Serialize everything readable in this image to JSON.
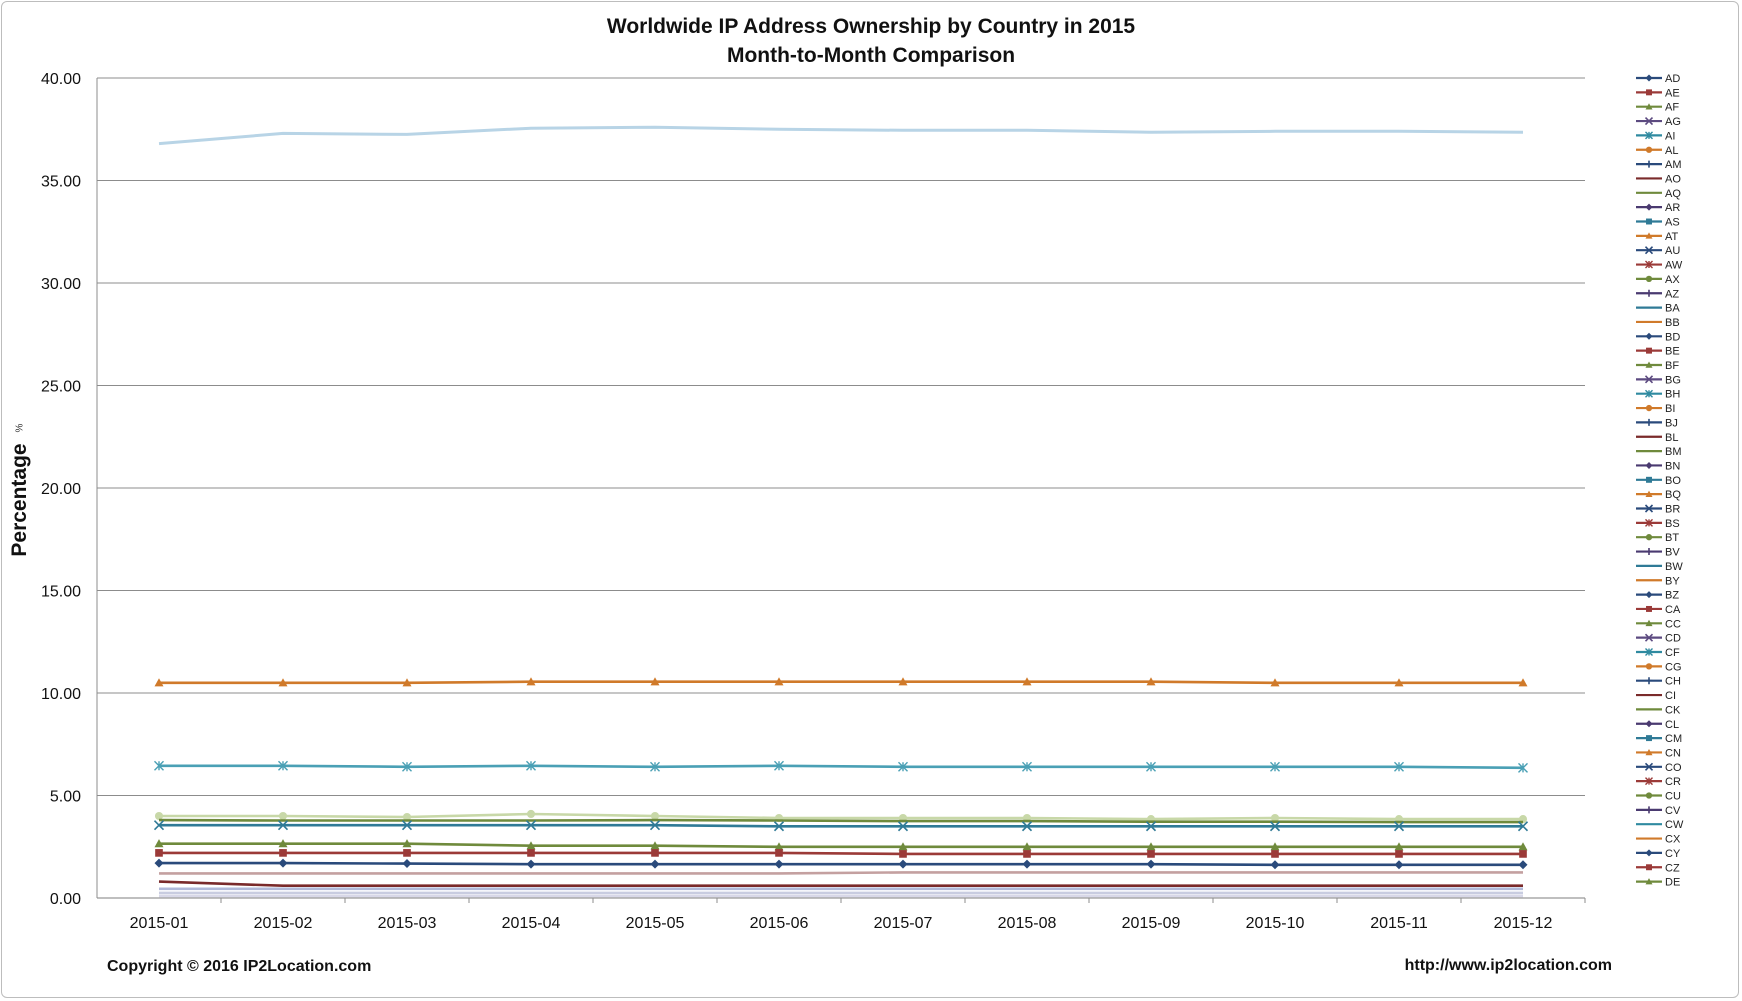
{
  "chart_data": {
    "type": "line",
    "title": "Worldwide IP Address Ownership by Country in 2015",
    "subtitle": "Month-to-Month Comparison",
    "ylabel": "Percentage",
    "ylabel_unit": "%",
    "xlabel": "",
    "ylim": [
      0,
      40
    ],
    "yticks": [
      "0.00",
      "5.00",
      "10.00",
      "15.00",
      "20.00",
      "25.00",
      "30.00",
      "35.00",
      "40.00"
    ],
    "grid": true,
    "legend_position": "right",
    "categories": [
      "2015-01",
      "2015-02",
      "2015-03",
      "2015-04",
      "2015-05",
      "2015-06",
      "2015-07",
      "2015-08",
      "2015-09",
      "2015-10",
      "2015-11",
      "2015-12"
    ],
    "legend": [
      {
        "name": "AD",
        "color": "#2a4a7b",
        "marker": "diamond"
      },
      {
        "name": "AE",
        "color": "#9b3a38",
        "marker": "square"
      },
      {
        "name": "AF",
        "color": "#6f8a3c",
        "marker": "triangle"
      },
      {
        "name": "AG",
        "color": "#5c4a80",
        "marker": "x"
      },
      {
        "name": "AI",
        "color": "#2f8aa0",
        "marker": "star"
      },
      {
        "name": "AL",
        "color": "#d07a2a",
        "marker": "circle"
      },
      {
        "name": "AM",
        "color": "#2a4a7b",
        "marker": "plus"
      },
      {
        "name": "AO",
        "color": "#7a2a2a",
        "marker": "none"
      },
      {
        "name": "AQ",
        "color": "#6f8a3c",
        "marker": "none"
      },
      {
        "name": "AR",
        "color": "#4a3a70",
        "marker": "diamond"
      },
      {
        "name": "AS",
        "color": "#2f7a96",
        "marker": "square"
      },
      {
        "name": "AT",
        "color": "#d07a2a",
        "marker": "triangle"
      },
      {
        "name": "AU",
        "color": "#2a4a7b",
        "marker": "x"
      },
      {
        "name": "AW",
        "color": "#9b3a38",
        "marker": "star"
      },
      {
        "name": "AX",
        "color": "#6f8a3c",
        "marker": "circle"
      },
      {
        "name": "AZ",
        "color": "#4a3a70",
        "marker": "plus"
      },
      {
        "name": "BA",
        "color": "#2f7a96",
        "marker": "none"
      },
      {
        "name": "BB",
        "color": "#d07a2a",
        "marker": "none"
      },
      {
        "name": "BD",
        "color": "#2a4a7b",
        "marker": "diamond"
      },
      {
        "name": "BE",
        "color": "#9b3a38",
        "marker": "square"
      },
      {
        "name": "BF",
        "color": "#6f8a3c",
        "marker": "triangle"
      },
      {
        "name": "BG",
        "color": "#5c4a80",
        "marker": "x"
      },
      {
        "name": "BH",
        "color": "#2f8aa0",
        "marker": "star"
      },
      {
        "name": "BI",
        "color": "#d07a2a",
        "marker": "circle"
      },
      {
        "name": "BJ",
        "color": "#2a4a7b",
        "marker": "plus"
      },
      {
        "name": "BL",
        "color": "#7a2a2a",
        "marker": "none"
      },
      {
        "name": "BM",
        "color": "#6f8a3c",
        "marker": "none"
      },
      {
        "name": "BN",
        "color": "#4a3a70",
        "marker": "diamond"
      },
      {
        "name": "BO",
        "color": "#2f7a96",
        "marker": "square"
      },
      {
        "name": "BQ",
        "color": "#d07a2a",
        "marker": "triangle"
      },
      {
        "name": "BR",
        "color": "#2a4a7b",
        "marker": "x"
      },
      {
        "name": "BS",
        "color": "#9b3a38",
        "marker": "star"
      },
      {
        "name": "BT",
        "color": "#6f8a3c",
        "marker": "circle"
      },
      {
        "name": "BV",
        "color": "#4a3a70",
        "marker": "plus"
      },
      {
        "name": "BW",
        "color": "#2f7a96",
        "marker": "none"
      },
      {
        "name": "BY",
        "color": "#d07a2a",
        "marker": "none"
      },
      {
        "name": "BZ",
        "color": "#2a4a7b",
        "marker": "diamond"
      },
      {
        "name": "CA",
        "color": "#9b3a38",
        "marker": "square"
      },
      {
        "name": "CC",
        "color": "#6f8a3c",
        "marker": "triangle"
      },
      {
        "name": "CD",
        "color": "#5c4a80",
        "marker": "x"
      },
      {
        "name": "CF",
        "color": "#2f8aa0",
        "marker": "star"
      },
      {
        "name": "CG",
        "color": "#d07a2a",
        "marker": "circle"
      },
      {
        "name": "CH",
        "color": "#2a4a7b",
        "marker": "plus"
      },
      {
        "name": "CI",
        "color": "#7a2a2a",
        "marker": "none"
      },
      {
        "name": "CK",
        "color": "#6f8a3c",
        "marker": "none"
      },
      {
        "name": "CL",
        "color": "#4a3a70",
        "marker": "diamond"
      },
      {
        "name": "CM",
        "color": "#2f7a96",
        "marker": "square"
      },
      {
        "name": "CN",
        "color": "#d07a2a",
        "marker": "triangle"
      },
      {
        "name": "CO",
        "color": "#2a4a7b",
        "marker": "x"
      },
      {
        "name": "CR",
        "color": "#9b3a38",
        "marker": "star"
      },
      {
        "name": "CU",
        "color": "#6f8a3c",
        "marker": "circle"
      },
      {
        "name": "CV",
        "color": "#4a3a70",
        "marker": "plus"
      },
      {
        "name": "CW",
        "color": "#2f8aa0",
        "marker": "none"
      },
      {
        "name": "CX",
        "color": "#d07a2a",
        "marker": "none"
      },
      {
        "name": "CY",
        "color": "#2a4a7b",
        "marker": "diamond"
      },
      {
        "name": "CZ",
        "color": "#9b3a38",
        "marker": "square"
      },
      {
        "name": "DE",
        "color": "#6f8a3c",
        "marker": "triangle"
      }
    ],
    "series": [
      {
        "color": "#b8d4e6",
        "marker": "none",
        "values": [
          36.8,
          37.3,
          37.25,
          37.55,
          37.6,
          37.5,
          37.45,
          37.45,
          37.35,
          37.4,
          37.4,
          37.35
        ]
      },
      {
        "name": "CN",
        "color": "#d07a2a",
        "marker": "triangle",
        "values": [
          10.5,
          10.5,
          10.5,
          10.55,
          10.55,
          10.55,
          10.55,
          10.55,
          10.55,
          10.5,
          10.5,
          10.5
        ]
      },
      {
        "color": "#4aa0b5",
        "marker": "star",
        "values": [
          6.45,
          6.45,
          6.4,
          6.45,
          6.4,
          6.45,
          6.4,
          6.4,
          6.4,
          6.4,
          6.4,
          6.35
        ]
      },
      {
        "color": "#c8d8a8",
        "marker": "circle",
        "values": [
          4.0,
          4.0,
          3.95,
          4.1,
          4.0,
          3.9,
          3.9,
          3.9,
          3.85,
          3.9,
          3.85,
          3.85
        ]
      },
      {
        "color": "#6f8a3c",
        "marker": "none",
        "values": [
          3.8,
          3.78,
          3.78,
          3.78,
          3.8,
          3.78,
          3.75,
          3.75,
          3.72,
          3.72,
          3.7,
          3.7
        ]
      },
      {
        "color": "#2f7a96",
        "marker": "x",
        "values": [
          3.55,
          3.55,
          3.55,
          3.55,
          3.55,
          3.5,
          3.5,
          3.5,
          3.5,
          3.5,
          3.5,
          3.5
        ]
      },
      {
        "color": "#6f8a3c",
        "marker": "triangle",
        "values": [
          2.65,
          2.65,
          2.65,
          2.55,
          2.55,
          2.5,
          2.5,
          2.5,
          2.5,
          2.5,
          2.5,
          2.5
        ]
      },
      {
        "name": "CA",
        "color": "#9b3a38",
        "marker": "square",
        "values": [
          2.2,
          2.2,
          2.2,
          2.2,
          2.2,
          2.2,
          2.15,
          2.15,
          2.15,
          2.15,
          2.15,
          2.15
        ]
      },
      {
        "color": "#2a4a7b",
        "marker": "diamond",
        "values": [
          1.7,
          1.7,
          1.68,
          1.65,
          1.65,
          1.65,
          1.65,
          1.65,
          1.65,
          1.62,
          1.62,
          1.62
        ]
      },
      {
        "color": "#c4a0a0",
        "marker": "none",
        "values": [
          1.2,
          1.2,
          1.2,
          1.2,
          1.2,
          1.2,
          1.25,
          1.25,
          1.25,
          1.25,
          1.25,
          1.25
        ]
      },
      {
        "color": "#7a2a2a",
        "marker": "none",
        "values": [
          0.8,
          0.6,
          0.6,
          0.6,
          0.6,
          0.6,
          0.6,
          0.6,
          0.6,
          0.6,
          0.6,
          0.6
        ]
      },
      {
        "color": "#b0b8d8",
        "marker": "none",
        "values": [
          0.45,
          0.45,
          0.45,
          0.45,
          0.45,
          0.45,
          0.45,
          0.45,
          0.45,
          0.45,
          0.45,
          0.45
        ]
      },
      {
        "color": "#c8cce0",
        "marker": "none",
        "values": [
          0.25,
          0.25,
          0.25,
          0.25,
          0.25,
          0.25,
          0.25,
          0.25,
          0.25,
          0.25,
          0.25,
          0.25
        ]
      },
      {
        "color": "#d8d8e8",
        "marker": "none",
        "values": [
          0.1,
          0.1,
          0.1,
          0.1,
          0.1,
          0.1,
          0.1,
          0.1,
          0.1,
          0.1,
          0.1,
          0.1
        ]
      }
    ]
  },
  "footer": {
    "copyright": "Copyright © 2016 IP2Location.com",
    "url": "http://www.ip2location.com"
  }
}
